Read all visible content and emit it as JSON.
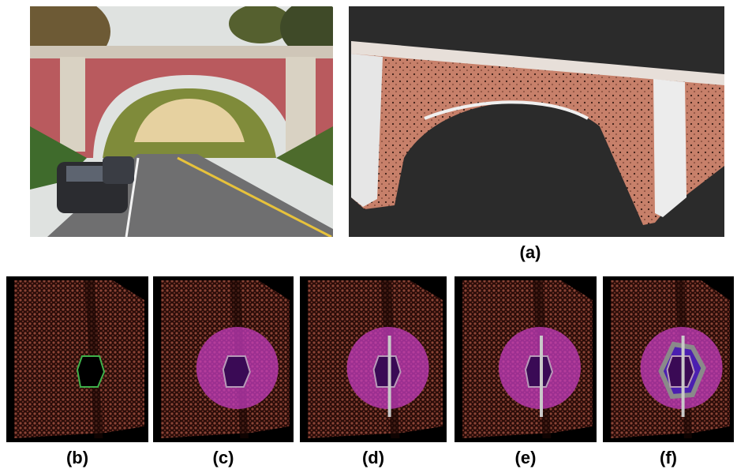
{
  "figure": {
    "labels": [
      "(a)",
      "(b)",
      "(c)",
      "(d)",
      "(e)",
      "(f)"
    ]
  }
}
